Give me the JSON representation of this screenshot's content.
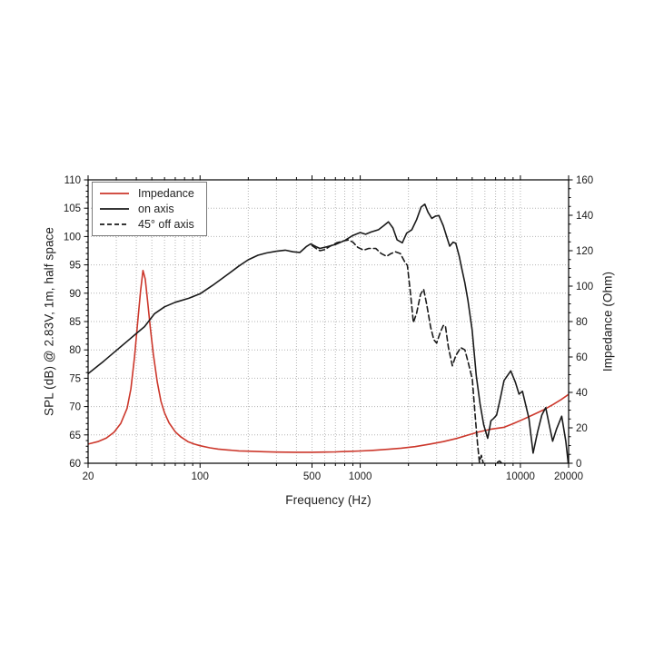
{
  "chart_data": {
    "type": "line",
    "title": "",
    "grid": true,
    "legend_position": "top-left",
    "x_axis": {
      "label": "Frequency (Hz)",
      "scale": "log",
      "min": 20,
      "max": 20000,
      "labeled_ticks": [
        20,
        100,
        500,
        1000,
        10000,
        20000
      ]
    },
    "y_left": {
      "label": "SPL (dB) @ 2.83V, 1m, half space",
      "min": 60,
      "max": 110,
      "major_step": 5,
      "minor_step": 1,
      "ticks": [
        110,
        105,
        100,
        95,
        90,
        85,
        80,
        75,
        70,
        65,
        60
      ]
    },
    "y_right": {
      "label": "Impedance (Ohm)",
      "min": 0,
      "max": 160,
      "major_step": 20,
      "minor_step": 5,
      "ticks": [
        160,
        140,
        120,
        100,
        80,
        60,
        40,
        20,
        0
      ]
    },
    "series": [
      {
        "name": "Impedance",
        "id": "impedance",
        "axis": "right",
        "unit": "Ohm",
        "color": "#cc372b",
        "dash": "solid",
        "points": [
          [
            20,
            10.8
          ],
          [
            23,
            12.2
          ],
          [
            26,
            14.2
          ],
          [
            29,
            17.5
          ],
          [
            32,
            22.5
          ],
          [
            35,
            31
          ],
          [
            37,
            42
          ],
          [
            39,
            60
          ],
          [
            41,
            82
          ],
          [
            42.5,
            97
          ],
          [
            44,
            108.8
          ],
          [
            45.5,
            104
          ],
          [
            47,
            92
          ],
          [
            49,
            76
          ],
          [
            51,
            62
          ],
          [
            54,
            46
          ],
          [
            57,
            35
          ],
          [
            60,
            28.5
          ],
          [
            64,
            22.8
          ],
          [
            70,
            17.8
          ],
          [
            76,
            14.8
          ],
          [
            84,
            12.2
          ],
          [
            92,
            10.8
          ],
          [
            100,
            9.9
          ],
          [
            115,
            8.7
          ],
          [
            130,
            8.0
          ],
          [
            150,
            7.5
          ],
          [
            175,
            7.0
          ],
          [
            200,
            6.8
          ],
          [
            250,
            6.5
          ],
          [
            300,
            6.3
          ],
          [
            400,
            6.2
          ],
          [
            500,
            6.2
          ],
          [
            600,
            6.3
          ],
          [
            700,
            6.4
          ],
          [
            850,
            6.7
          ],
          [
            1000,
            6.9
          ],
          [
            1200,
            7.3
          ],
          [
            1500,
            7.9
          ],
          [
            1800,
            8.5
          ],
          [
            2200,
            9.4
          ],
          [
            2700,
            10.7
          ],
          [
            3300,
            12.2
          ],
          [
            4000,
            14.0
          ],
          [
            4700,
            15.9
          ],
          [
            5500,
            17.7
          ],
          [
            6500,
            19.2
          ],
          [
            7900,
            20.3
          ],
          [
            9000,
            22.3
          ],
          [
            10500,
            25.0
          ],
          [
            12000,
            27.4
          ],
          [
            14000,
            30.2
          ],
          [
            16000,
            33.2
          ],
          [
            18000,
            36.0
          ],
          [
            20000,
            38.9
          ]
        ]
      },
      {
        "name": "on axis",
        "id": "on_axis",
        "axis": "left",
        "unit": "dB",
        "color": "#1a1a1a",
        "dash": "solid",
        "points": [
          [
            20,
            75.8
          ],
          [
            25,
            78.0
          ],
          [
            30,
            79.9
          ],
          [
            35,
            81.5
          ],
          [
            40,
            82.9
          ],
          [
            45,
            84.1
          ],
          [
            52,
            86.4
          ],
          [
            60,
            87.6
          ],
          [
            70,
            88.4
          ],
          [
            85,
            89.1
          ],
          [
            100,
            89.9
          ],
          [
            120,
            91.4
          ],
          [
            150,
            93.4
          ],
          [
            175,
            94.8
          ],
          [
            200,
            95.9
          ],
          [
            230,
            96.7
          ],
          [
            260,
            97.1
          ],
          [
            300,
            97.4
          ],
          [
            340,
            97.6
          ],
          [
            380,
            97.3
          ],
          [
            420,
            97.2
          ],
          [
            460,
            98.2
          ],
          [
            490,
            98.7
          ],
          [
            530,
            98.2
          ],
          [
            560,
            97.9
          ],
          [
            620,
            98.2
          ],
          [
            700,
            98.6
          ],
          [
            800,
            99.3
          ],
          [
            900,
            100.2
          ],
          [
            1000,
            100.7
          ],
          [
            1080,
            100.4
          ],
          [
            1170,
            100.8
          ],
          [
            1300,
            101.2
          ],
          [
            1400,
            101.9
          ],
          [
            1500,
            102.6
          ],
          [
            1600,
            101.5
          ],
          [
            1700,
            99.4
          ],
          [
            1830,
            98.9
          ],
          [
            1950,
            100.6
          ],
          [
            2100,
            101.2
          ],
          [
            2250,
            103.0
          ],
          [
            2400,
            105.2
          ],
          [
            2530,
            105.7
          ],
          [
            2650,
            104.3
          ],
          [
            2800,
            103.2
          ],
          [
            2950,
            103.6
          ],
          [
            3100,
            103.7
          ],
          [
            3300,
            101.9
          ],
          [
            3500,
            99.6
          ],
          [
            3620,
            98.3
          ],
          [
            3800,
            99.0
          ],
          [
            3950,
            98.8
          ],
          [
            4150,
            96.5
          ],
          [
            4300,
            94.4
          ],
          [
            4500,
            91.8
          ],
          [
            4700,
            88.8
          ],
          [
            5000,
            83.5
          ],
          [
            5300,
            75.5
          ],
          [
            5600,
            70.5
          ],
          [
            5900,
            66.8
          ],
          [
            6250,
            64.4
          ],
          [
            6550,
            67.5
          ],
          [
            6800,
            67.9
          ],
          [
            7100,
            68.5
          ],
          [
            7500,
            71.5
          ],
          [
            7900,
            74.6
          ],
          [
            8700,
            76.3
          ],
          [
            9300,
            74.3
          ],
          [
            9800,
            72.2
          ],
          [
            10300,
            72.7
          ],
          [
            11300,
            67.9
          ],
          [
            12000,
            61.8
          ],
          [
            12800,
            65.5
          ],
          [
            13600,
            68.5
          ],
          [
            14400,
            69.8
          ],
          [
            15200,
            66.5
          ],
          [
            15900,
            63.9
          ],
          [
            16800,
            66.0
          ],
          [
            18100,
            68.3
          ],
          [
            19200,
            63.9
          ],
          [
            19900,
            60.0
          ]
        ]
      },
      {
        "name": "45° off axis",
        "id": "off_axis_45",
        "axis": "left",
        "unit": "dB",
        "color": "#1a1a1a",
        "dash": "dashed",
        "points": [
          [
            500,
            98.4
          ],
          [
            530,
            97.9
          ],
          [
            560,
            97.5
          ],
          [
            600,
            97.7
          ],
          [
            650,
            98.3
          ],
          [
            713,
            98.9
          ],
          [
            780,
            99.2
          ],
          [
            845,
            99.4
          ],
          [
            900,
            99.0
          ],
          [
            966,
            98.1
          ],
          [
            1050,
            97.6
          ],
          [
            1130,
            97.9
          ],
          [
            1250,
            97.9
          ],
          [
            1350,
            97.0
          ],
          [
            1460,
            96.5
          ],
          [
            1560,
            97.0
          ],
          [
            1660,
            97.3
          ],
          [
            1780,
            97.0
          ],
          [
            1900,
            95.5
          ],
          [
            1970,
            94.9
          ],
          [
            2060,
            90.0
          ],
          [
            2148,
            84.8
          ],
          [
            2250,
            86.5
          ],
          [
            2380,
            89.8
          ],
          [
            2490,
            90.7
          ],
          [
            2600,
            88.0
          ],
          [
            2750,
            84.0
          ],
          [
            2880,
            81.8
          ],
          [
            3000,
            81.2
          ],
          [
            3150,
            83.0
          ],
          [
            3300,
            84.3
          ],
          [
            3400,
            84.3
          ],
          [
            3550,
            80.5
          ],
          [
            3760,
            77.2
          ],
          [
            3950,
            79.0
          ],
          [
            4240,
            80.4
          ],
          [
            4500,
            80.0
          ],
          [
            4750,
            77.5
          ],
          [
            5010,
            74.8
          ],
          [
            5200,
            69.0
          ],
          [
            5400,
            63.5
          ],
          [
            5550,
            60.2
          ],
          [
            5700,
            61.4
          ],
          [
            5850,
            60.1
          ],
          null,
          [
            7200,
            60.2
          ],
          [
            7400,
            60.4
          ],
          [
            7600,
            60.1
          ]
        ]
      }
    ]
  },
  "style": {
    "grid_color": "#b5b5b5",
    "axis_color": "#000000",
    "tick_label_color": "#1a1a1a",
    "legend_border_color": "#7a7a7a"
  }
}
